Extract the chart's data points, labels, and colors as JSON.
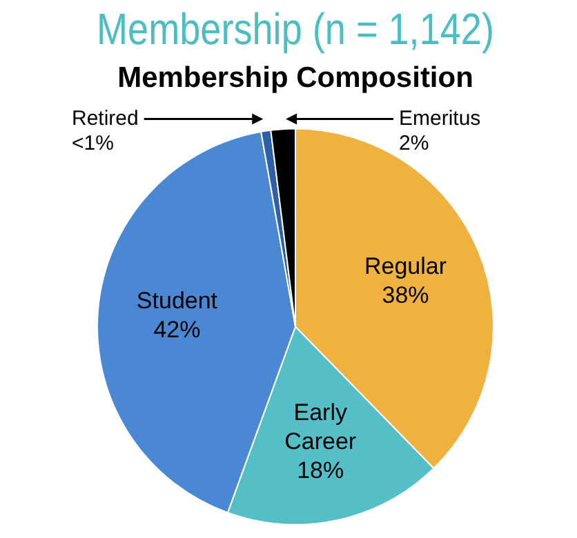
{
  "chart_data": {
    "type": "pie",
    "title": "Membership (n = 1,142)",
    "subtitle": "Membership Composition",
    "categories": [
      "Regular",
      "Early Career",
      "Student",
      "Retired",
      "Emeritus"
    ],
    "values": [
      38,
      18,
      42,
      0.8,
      2
    ],
    "value_labels": [
      "38%",
      "18%",
      "42%",
      "<1%",
      "2%"
    ],
    "colors": [
      "#f0b23f",
      "#54bfc6",
      "#4a88d4",
      "#2e5fa8",
      "#000000"
    ],
    "legend": false
  }
}
